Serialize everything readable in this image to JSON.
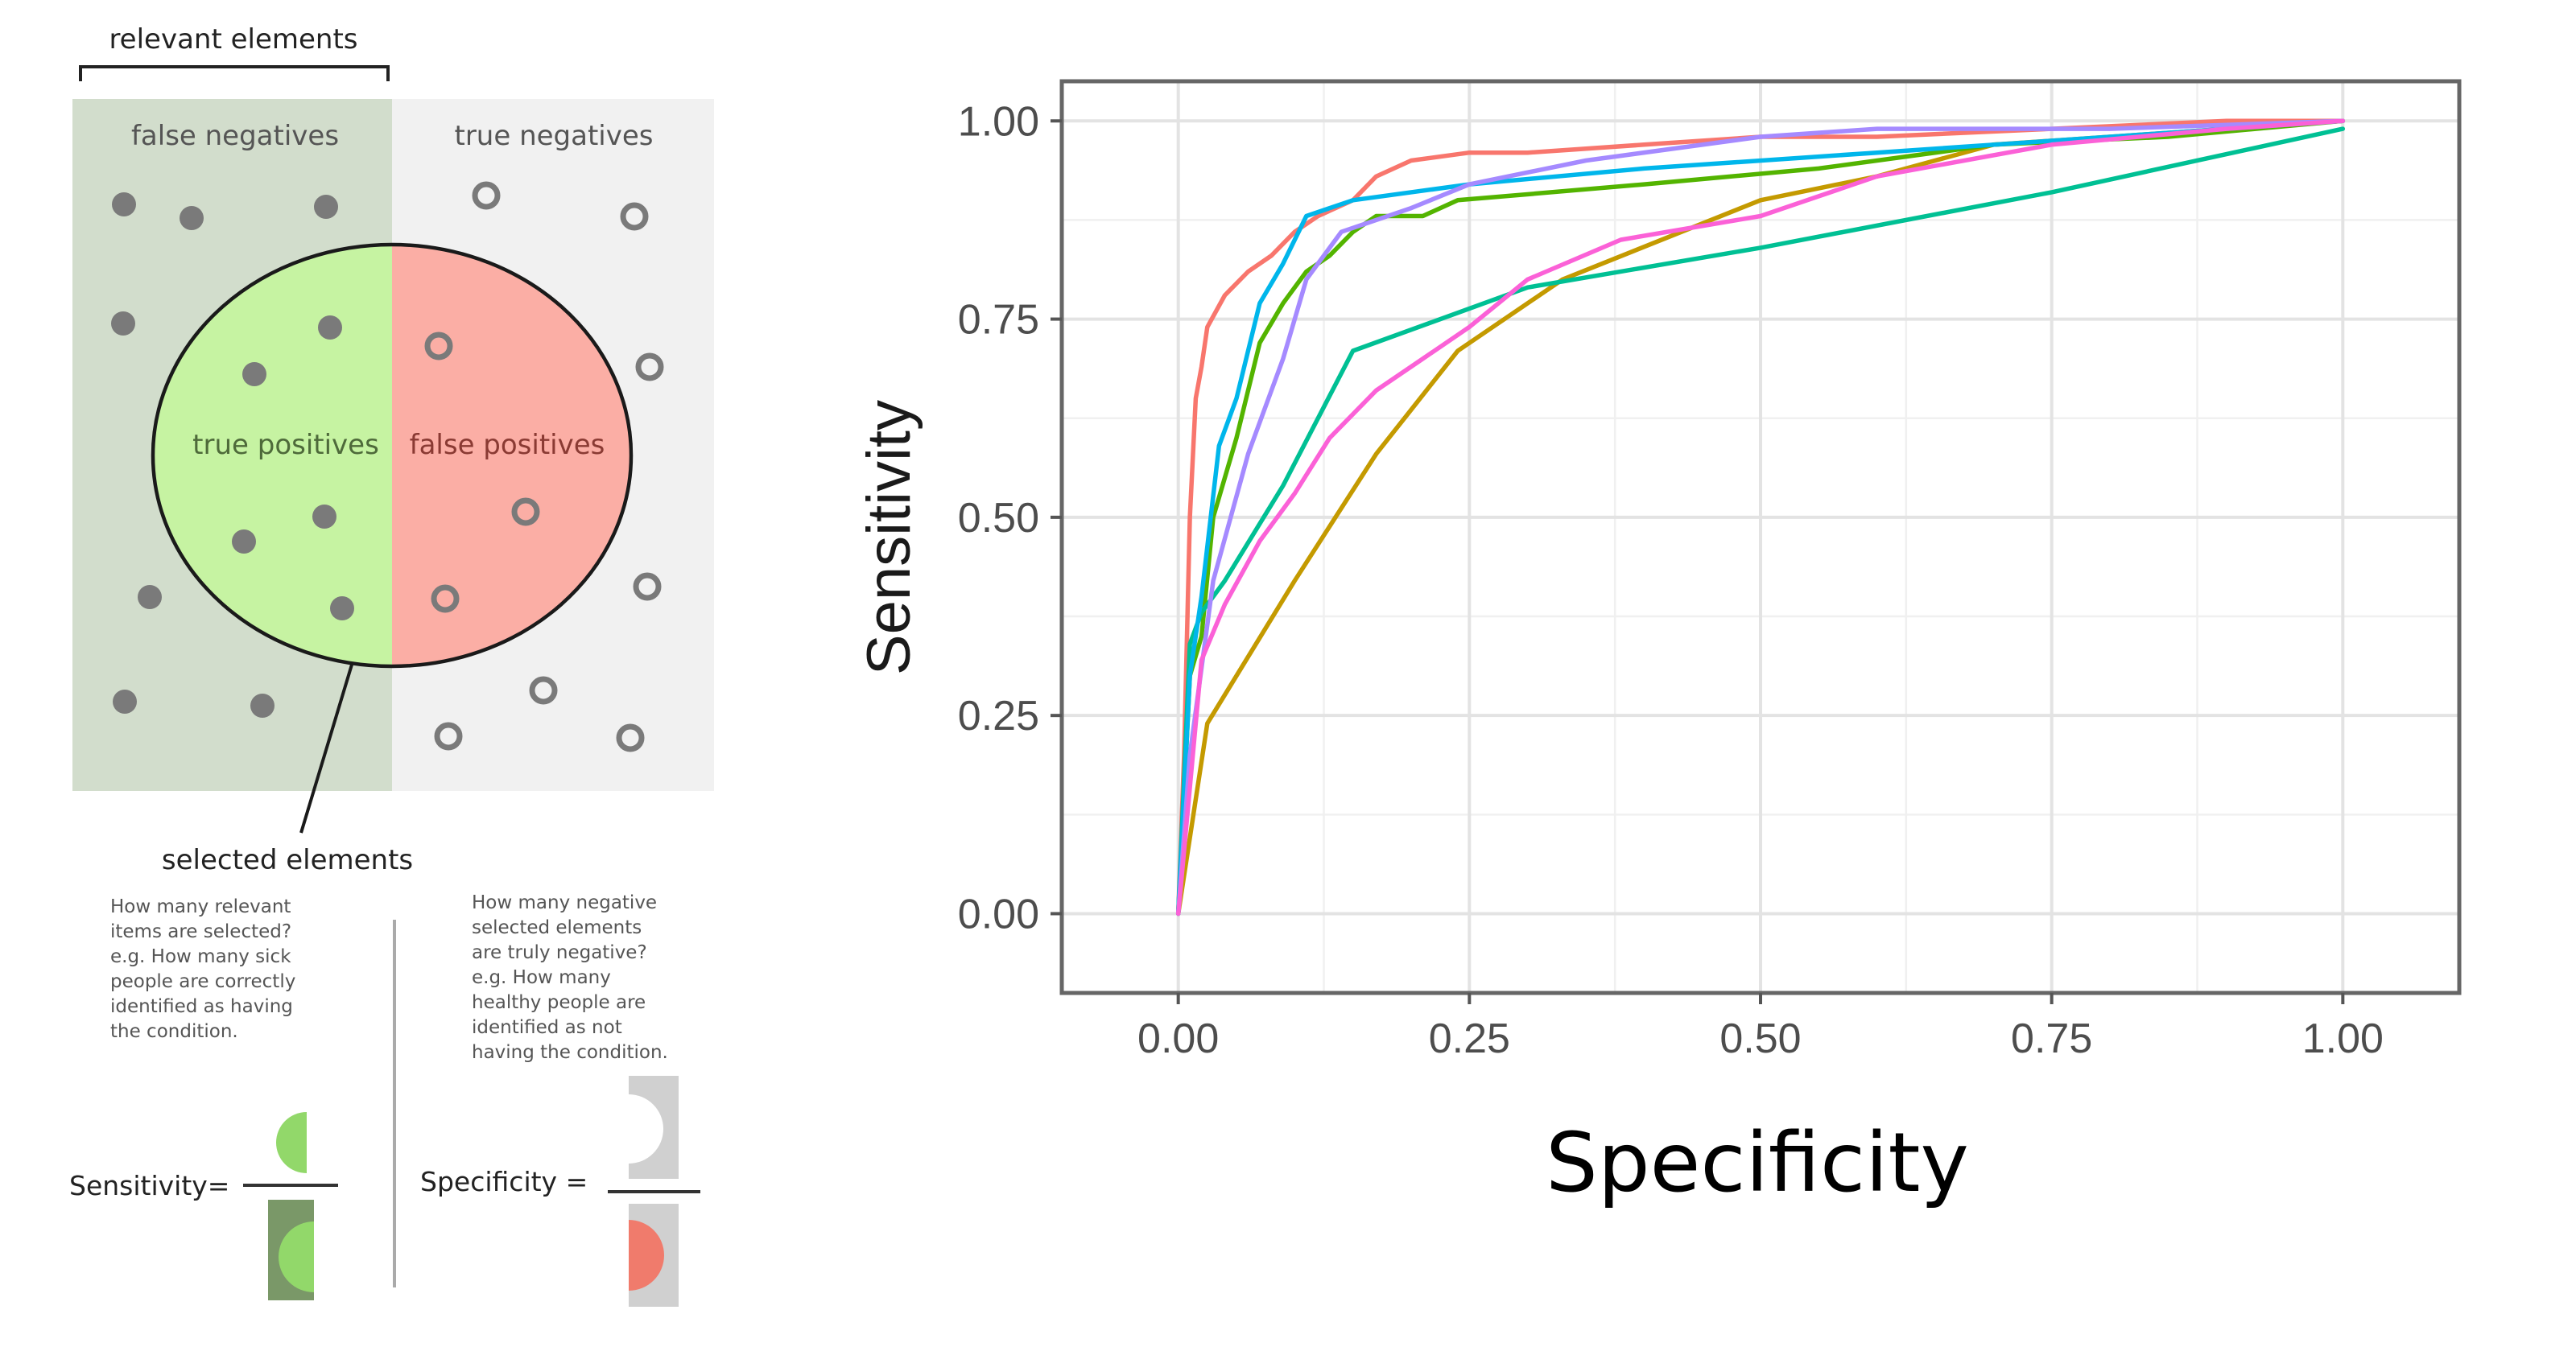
{
  "diagram": {
    "relevant_label": "relevant elements",
    "fn_label": "false negatives",
    "tn_label": "true negatives",
    "tp_label": "true positives",
    "fp_label": "false positives",
    "selected_label": "selected elements",
    "sens_question": [
      "How many relevant",
      "items are selected?",
      "e.g. How many sick",
      "people are correctly",
      "identified as having",
      "the condition."
    ],
    "spec_question": [
      "How many negative",
      "selected elements",
      "are truly negative?",
      "e.g. How many",
      "healthy people are",
      "identified as not",
      "having the condition."
    ],
    "sens_formula_label": "Sensitivity=",
    "spec_formula_label": "Specificity =",
    "colors": {
      "relevant_bg": "#d2ddcc",
      "irrelevant_bg": "#f1f1f1",
      "tp_fill": "#c6f3a2",
      "fp_fill": "#fbaea5",
      "sens_green": "#92d86a",
      "sens_dark": "#7a9868",
      "spec_red": "#f07b6c",
      "spec_gray": "#d0d0d0",
      "dot": "#7a7a7a"
    }
  },
  "chart_data": {
    "type": "line",
    "title": "",
    "xlabel": "Specificity",
    "ylabel": "Sensitivity",
    "xlim": [
      -0.1,
      1.1
    ],
    "ylim": [
      -0.1,
      1.05
    ],
    "x_ticks": [
      "0.00",
      "0.25",
      "0.50",
      "0.75",
      "1.00"
    ],
    "y_ticks": [
      "0.00",
      "0.25",
      "0.50",
      "0.75",
      "1.00"
    ],
    "grid": true,
    "legend": "none",
    "series": [
      {
        "color": "#f8766d",
        "points": [
          [
            0,
            0
          ],
          [
            0.005,
            0.2
          ],
          [
            0.01,
            0.5
          ],
          [
            0.015,
            0.65
          ],
          [
            0.02,
            0.69
          ],
          [
            0.025,
            0.74
          ],
          [
            0.04,
            0.78
          ],
          [
            0.06,
            0.81
          ],
          [
            0.08,
            0.83
          ],
          [
            0.1,
            0.86
          ],
          [
            0.12,
            0.88
          ],
          [
            0.15,
            0.9
          ],
          [
            0.17,
            0.93
          ],
          [
            0.2,
            0.95
          ],
          [
            0.25,
            0.96
          ],
          [
            0.3,
            0.96
          ],
          [
            0.4,
            0.97
          ],
          [
            0.5,
            0.98
          ],
          [
            0.6,
            0.98
          ],
          [
            0.75,
            0.99
          ],
          [
            0.9,
            1.0
          ],
          [
            1,
            1
          ]
        ]
      },
      {
        "color": "#c49a00",
        "points": [
          [
            0,
            0
          ],
          [
            0.025,
            0.24
          ],
          [
            0.1,
            0.42
          ],
          [
            0.17,
            0.58
          ],
          [
            0.24,
            0.71
          ],
          [
            0.33,
            0.8
          ],
          [
            0.5,
            0.9
          ],
          [
            0.6,
            0.93
          ],
          [
            0.7,
            0.97
          ],
          [
            0.8,
            0.98
          ],
          [
            0.9,
            0.99
          ],
          [
            1,
            1
          ]
        ]
      },
      {
        "color": "#53b400",
        "points": [
          [
            0,
            0
          ],
          [
            0.01,
            0.3
          ],
          [
            0.02,
            0.35
          ],
          [
            0.03,
            0.5
          ],
          [
            0.05,
            0.6
          ],
          [
            0.07,
            0.72
          ],
          [
            0.09,
            0.77
          ],
          [
            0.11,
            0.81
          ],
          [
            0.13,
            0.83
          ],
          [
            0.15,
            0.86
          ],
          [
            0.17,
            0.88
          ],
          [
            0.21,
            0.88
          ],
          [
            0.24,
            0.9
          ],
          [
            0.4,
            0.92
          ],
          [
            0.55,
            0.94
          ],
          [
            0.7,
            0.97
          ],
          [
            0.85,
            0.98
          ],
          [
            1,
            1
          ]
        ]
      },
      {
        "color": "#00c094",
        "points": [
          [
            0,
            0
          ],
          [
            0.01,
            0.34
          ],
          [
            0.02,
            0.38
          ],
          [
            0.04,
            0.42
          ],
          [
            0.09,
            0.54
          ],
          [
            0.15,
            0.71
          ],
          [
            0.3,
            0.79
          ],
          [
            0.5,
            0.84
          ],
          [
            0.75,
            0.91
          ],
          [
            1,
            0.99
          ]
        ]
      },
      {
        "color": "#00b6eb",
        "points": [
          [
            0,
            0
          ],
          [
            0.01,
            0.3
          ],
          [
            0.02,
            0.4
          ],
          [
            0.035,
            0.59
          ],
          [
            0.05,
            0.65
          ],
          [
            0.07,
            0.77
          ],
          [
            0.09,
            0.82
          ],
          [
            0.11,
            0.88
          ],
          [
            0.15,
            0.9
          ],
          [
            0.25,
            0.92
          ],
          [
            0.4,
            0.94
          ],
          [
            0.6,
            0.96
          ],
          [
            0.8,
            0.98
          ],
          [
            1,
            1
          ]
        ]
      },
      {
        "color": "#a58aff",
        "points": [
          [
            0,
            0
          ],
          [
            0.01,
            0.2
          ],
          [
            0.03,
            0.42
          ],
          [
            0.06,
            0.58
          ],
          [
            0.09,
            0.7
          ],
          [
            0.11,
            0.8
          ],
          [
            0.14,
            0.86
          ],
          [
            0.2,
            0.89
          ],
          [
            0.25,
            0.92
          ],
          [
            0.35,
            0.95
          ],
          [
            0.5,
            0.98
          ],
          [
            0.6,
            0.99
          ],
          [
            0.8,
            0.99
          ],
          [
            1,
            1
          ]
        ]
      },
      {
        "color": "#fb61d7",
        "points": [
          [
            0,
            0
          ],
          [
            0.02,
            0.32
          ],
          [
            0.04,
            0.39
          ],
          [
            0.07,
            0.47
          ],
          [
            0.1,
            0.53
          ],
          [
            0.13,
            0.6
          ],
          [
            0.17,
            0.66
          ],
          [
            0.21,
            0.7
          ],
          [
            0.25,
            0.74
          ],
          [
            0.3,
            0.8
          ],
          [
            0.38,
            0.85
          ],
          [
            0.5,
            0.88
          ],
          [
            0.6,
            0.93
          ],
          [
            0.75,
            0.97
          ],
          [
            0.9,
            0.99
          ],
          [
            1,
            1
          ]
        ]
      }
    ]
  }
}
